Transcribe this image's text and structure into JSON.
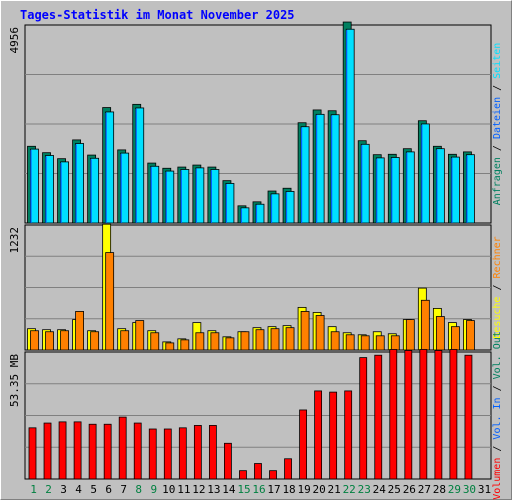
{
  "title": "Tages-Statistik im Monat November 2025",
  "colors": {
    "background": "#c0c0c0",
    "plot_bg": "#c0c0c0",
    "grid": "#808080",
    "anfragen": "#008060",
    "dateien": "#0060ff",
    "seiten": "#00e0ff",
    "besuche": "#ffff00",
    "rechner": "#ff8000",
    "vol_out": "#008060",
    "vol_in": "#0060ff",
    "volumen": "#ff0000",
    "weekend_label": "#008040",
    "weekday_label": "#000000"
  },
  "chart_data": [
    {
      "type": "bar",
      "panel": "top",
      "y_label": "4956",
      "ylim": [
        0,
        4956
      ],
      "categories": [
        "1",
        "2",
        "3",
        "4",
        "5",
        "6",
        "7",
        "8",
        "9",
        "10",
        "11",
        "12",
        "13",
        "14",
        "15",
        "16",
        "17",
        "18",
        "19",
        "20",
        "21",
        "22",
        "23",
        "24",
        "25",
        "26",
        "27",
        "28",
        "29",
        "30",
        "31"
      ],
      "weekend_categories": [
        "1",
        "2",
        "8",
        "9",
        "15",
        "16",
        "22",
        "23",
        "29",
        "30"
      ],
      "legend": [
        "Anfragen",
        "Dateien",
        "Seiten"
      ],
      "series": [
        {
          "name": "Anfragen",
          "values": [
            1920,
            1760,
            1610,
            2080,
            1700,
            2890,
            1830,
            2970,
            1500,
            1370,
            1400,
            1450,
            1400,
            1060,
            430,
            530,
            800,
            870,
            2510,
            2830,
            2810,
            5030,
            2060,
            1710,
            1720,
            1860,
            2560,
            1920,
            1720,
            1780,
            0
          ]
        },
        {
          "name": "Dateien",
          "values": [
            1850,
            1690,
            1530,
            1990,
            1620,
            2780,
            1750,
            2880,
            1420,
            1300,
            1340,
            1380,
            1340,
            990,
            380,
            470,
            730,
            790,
            2410,
            2720,
            2710,
            4850,
            1970,
            1630,
            1640,
            1780,
            2480,
            1860,
            1650,
            1710,
            0
          ]
        },
        {
          "name": "Seiten",
          "values": [
            1850,
            1690,
            1530,
            1990,
            1620,
            2780,
            1750,
            2880,
            1420,
            1300,
            1340,
            1380,
            1340,
            990,
            380,
            470,
            730,
            790,
            2410,
            2720,
            2710,
            4850,
            1970,
            1630,
            1640,
            1780,
            2480,
            1860,
            1650,
            1710,
            0
          ]
        }
      ],
      "legend_text": {
        "anfragen": "Anfragen",
        "sep1": " / ",
        "dateien": "Dateien",
        "sep2": " / ",
        "seiten": "Seiten"
      }
    },
    {
      "type": "bar",
      "panel": "middle",
      "y_label": "1232",
      "ylim": [
        0,
        1232
      ],
      "categories": [
        "1",
        "2",
        "3",
        "4",
        "5",
        "6",
        "7",
        "8",
        "9",
        "10",
        "11",
        "12",
        "13",
        "14",
        "15",
        "16",
        "17",
        "18",
        "19",
        "20",
        "21",
        "22",
        "23",
        "24",
        "25",
        "26",
        "27",
        "28",
        "29",
        "30",
        "31"
      ],
      "legend": [
        "Besuche",
        "Rechner"
      ],
      "series": [
        {
          "name": "Besuche",
          "values": [
            210,
            200,
            200,
            300,
            190,
            1240,
            210,
            270,
            190,
            80,
            110,
            270,
            190,
            130,
            180,
            220,
            230,
            240,
            420,
            370,
            230,
            170,
            150,
            180,
            160,
            300,
            610,
            410,
            270,
            300,
            0
          ]
        },
        {
          "name": "Rechner",
          "values": [
            190,
            180,
            190,
            380,
            180,
            960,
            190,
            290,
            170,
            70,
            100,
            170,
            170,
            120,
            180,
            200,
            210,
            220,
            380,
            340,
            180,
            150,
            140,
            140,
            140,
            300,
            490,
            330,
            230,
            290,
            0
          ]
        }
      ],
      "legend_text": {
        "besuche": "Besuche",
        "sep": " / ",
        "rechner": "Rechner"
      }
    },
    {
      "type": "bar",
      "panel": "bottom",
      "y_label": "53.35 MB",
      "ylim": [
        0,
        53.35
      ],
      "categories": [
        "1",
        "2",
        "3",
        "4",
        "5",
        "6",
        "7",
        "8",
        "9",
        "10",
        "11",
        "12",
        "13",
        "14",
        "15",
        "16",
        "17",
        "18",
        "19",
        "20",
        "21",
        "22",
        "23",
        "24",
        "25",
        "26",
        "27",
        "28",
        "29",
        "30",
        "31"
      ],
      "legend": [
        "Volumen",
        "Vol. In",
        "Vol. Out"
      ],
      "series": [
        {
          "name": "Volumen",
          "values": [
            21.5,
            23.5,
            24.0,
            24.0,
            23.0,
            23.0,
            26.0,
            23.5,
            21.0,
            21.0,
            21.5,
            22.5,
            22.5,
            15.0,
            3.5,
            6.5,
            3.5,
            8.5,
            29.0,
            37.0,
            36.5,
            37.0,
            51.0,
            52.0,
            55.0,
            54.0,
            55.0,
            54.0,
            56.0,
            52.0,
            0
          ]
        }
      ],
      "legend_text": {
        "volumen": "Volumen",
        "sep1": " / ",
        "vol_in": "Vol. In",
        "sep2": " / ",
        "vol_out": "Vol. Out"
      }
    }
  ]
}
